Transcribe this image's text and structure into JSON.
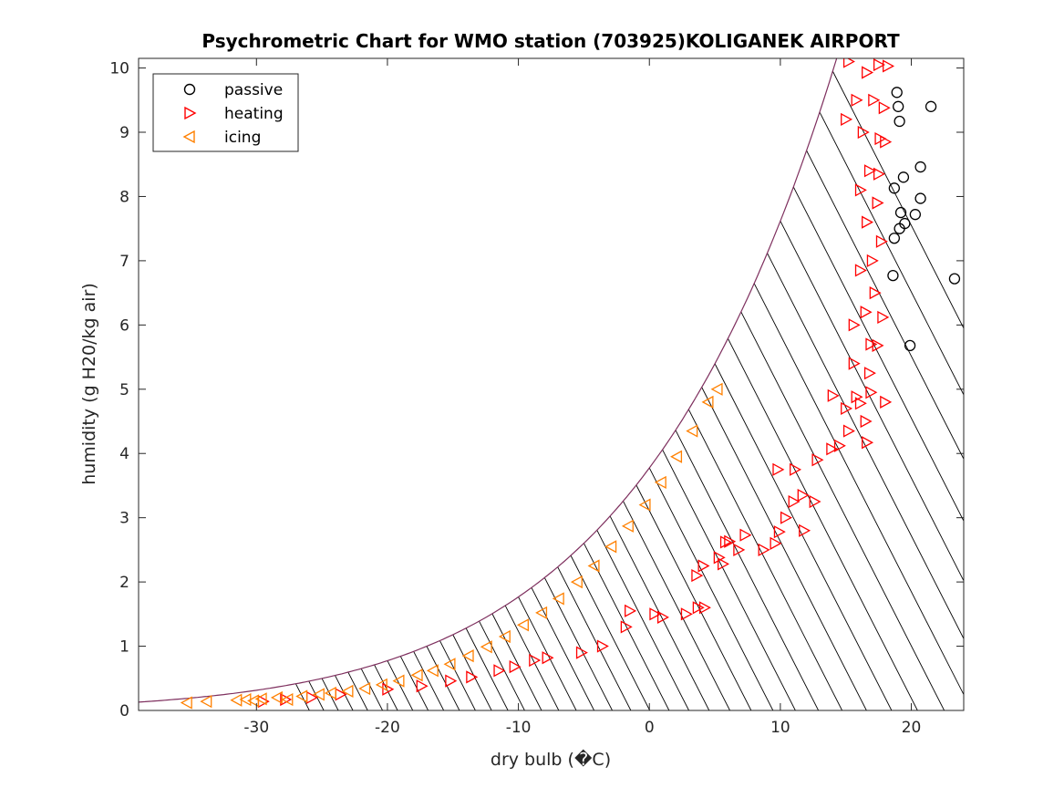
{
  "chart_data": {
    "type": "scatter",
    "title": "Psychrometric Chart for WMO station (703925)KOLIGANEK AIRPORT",
    "xlabel": "dry bulb (�C)",
    "ylabel": "humidity (g H20/kg air)",
    "xlim": [
      -39,
      24
    ],
    "ylim": [
      0,
      10.15
    ],
    "x_ticks": [
      -30,
      -20,
      -10,
      0,
      10,
      20
    ],
    "y_ticks": [
      0,
      1,
      2,
      3,
      4,
      5,
      6,
      7,
      8,
      9,
      10
    ],
    "grid": false,
    "legend_position": "top-left",
    "saturation_curve_color": "#7e2f5e",
    "series": [
      {
        "name": "passive",
        "marker": "circle",
        "color": "#000000",
        "points": [
          [
            18.9,
            9.62
          ],
          [
            19.0,
            9.4
          ],
          [
            19.1,
            9.17
          ],
          [
            21.5,
            9.4
          ],
          [
            20.7,
            8.46
          ],
          [
            19.4,
            8.3
          ],
          [
            18.7,
            8.13
          ],
          [
            20.7,
            7.97
          ],
          [
            19.2,
            7.75
          ],
          [
            20.3,
            7.72
          ],
          [
            19.5,
            7.58
          ],
          [
            19.1,
            7.5
          ],
          [
            18.7,
            7.35
          ],
          [
            18.6,
            6.77
          ],
          [
            23.3,
            6.72
          ],
          [
            19.9,
            5.68
          ]
        ]
      },
      {
        "name": "heating",
        "marker": "triangle-right",
        "color": "#ff0000",
        "points": [
          [
            15.2,
            10.1
          ],
          [
            17.5,
            10.05
          ],
          [
            18.2,
            10.03
          ],
          [
            16.6,
            9.93
          ],
          [
            15.8,
            9.5
          ],
          [
            17.1,
            9.5
          ],
          [
            17.9,
            9.38
          ],
          [
            15.0,
            9.2
          ],
          [
            16.3,
            9.0
          ],
          [
            17.6,
            8.9
          ],
          [
            18.0,
            8.85
          ],
          [
            16.8,
            8.4
          ],
          [
            17.5,
            8.35
          ],
          [
            16.1,
            8.1
          ],
          [
            17.4,
            7.9
          ],
          [
            16.6,
            7.6
          ],
          [
            17.7,
            7.3
          ],
          [
            17.0,
            7.0
          ],
          [
            16.1,
            6.85
          ],
          [
            17.2,
            6.5
          ],
          [
            16.5,
            6.2
          ],
          [
            17.8,
            6.12
          ],
          [
            15.6,
            6.0
          ],
          [
            16.9,
            5.7
          ],
          [
            17.4,
            5.68
          ],
          [
            15.6,
            5.4
          ],
          [
            16.8,
            5.25
          ],
          [
            16.9,
            4.95
          ],
          [
            15.8,
            4.88
          ],
          [
            16.1,
            4.78
          ],
          [
            18.0,
            4.8
          ],
          [
            14.0,
            4.9
          ],
          [
            15.0,
            4.7
          ],
          [
            16.5,
            4.5
          ],
          [
            15.2,
            4.35
          ],
          [
            14.5,
            4.12
          ],
          [
            13.9,
            4.07
          ],
          [
            16.6,
            4.17
          ],
          [
            12.8,
            3.9
          ],
          [
            11.1,
            3.75
          ],
          [
            9.8,
            3.75
          ],
          [
            11.7,
            3.35
          ],
          [
            11.0,
            3.25
          ],
          [
            12.6,
            3.25
          ],
          [
            10.4,
            3.0
          ],
          [
            11.8,
            2.8
          ],
          [
            9.9,
            2.78
          ],
          [
            7.3,
            2.73
          ],
          [
            8.7,
            2.5
          ],
          [
            9.6,
            2.6
          ],
          [
            6.8,
            2.5
          ],
          [
            6.1,
            2.63
          ],
          [
            5.8,
            2.62
          ],
          [
            5.3,
            2.38
          ],
          [
            5.6,
            2.28
          ],
          [
            4.1,
            2.25
          ],
          [
            3.6,
            2.1
          ],
          [
            4.2,
            1.6
          ],
          [
            3.7,
            1.6
          ],
          [
            2.8,
            1.5
          ],
          [
            1.0,
            1.45
          ],
          [
            0.4,
            1.5
          ],
          [
            -1.5,
            1.55
          ],
          [
            -1.8,
            1.3
          ],
          [
            -3.6,
            1.0
          ],
          [
            -5.2,
            0.9
          ],
          [
            -7.8,
            0.82
          ],
          [
            -8.8,
            0.78
          ],
          [
            -10.3,
            0.68
          ],
          [
            -11.5,
            0.62
          ],
          [
            -13.6,
            0.52
          ],
          [
            -15.2,
            0.46
          ],
          [
            -17.4,
            0.38
          ],
          [
            -20.0,
            0.33
          ],
          [
            -23.6,
            0.25
          ],
          [
            -25.8,
            0.2
          ],
          [
            -27.8,
            0.17
          ],
          [
            -29.5,
            0.14
          ]
        ]
      },
      {
        "name": "icing",
        "marker": "triangle-left",
        "color": "#ff8000",
        "points": [
          [
            -35.3,
            0.12
          ],
          [
            -33.8,
            0.14
          ],
          [
            -31.5,
            0.16
          ],
          [
            -30.8,
            0.17
          ],
          [
            -30.2,
            0.15
          ],
          [
            -29.6,
            0.18
          ],
          [
            -28.4,
            0.2
          ],
          [
            -27.6,
            0.17
          ],
          [
            -26.5,
            0.22
          ],
          [
            -25.2,
            0.25
          ],
          [
            -24.3,
            0.27
          ],
          [
            -23.0,
            0.3
          ],
          [
            -21.7,
            0.34
          ],
          [
            -20.4,
            0.4
          ],
          [
            -19.1,
            0.46
          ],
          [
            -17.7,
            0.55
          ],
          [
            -16.5,
            0.62
          ],
          [
            -15.2,
            0.72
          ],
          [
            -13.8,
            0.85
          ],
          [
            -12.4,
            0.99
          ],
          [
            -11.0,
            1.15
          ],
          [
            -9.6,
            1.33
          ],
          [
            -8.2,
            1.52
          ],
          [
            -6.9,
            1.74
          ],
          [
            -5.5,
            2.0
          ],
          [
            -4.2,
            2.25
          ],
          [
            -2.9,
            2.55
          ],
          [
            -1.6,
            2.87
          ],
          [
            -0.3,
            3.2
          ],
          [
            0.9,
            3.55
          ],
          [
            2.1,
            3.95
          ],
          [
            3.3,
            4.35
          ],
          [
            4.5,
            4.8
          ],
          [
            5.2,
            5.0
          ]
        ]
      }
    ]
  }
}
